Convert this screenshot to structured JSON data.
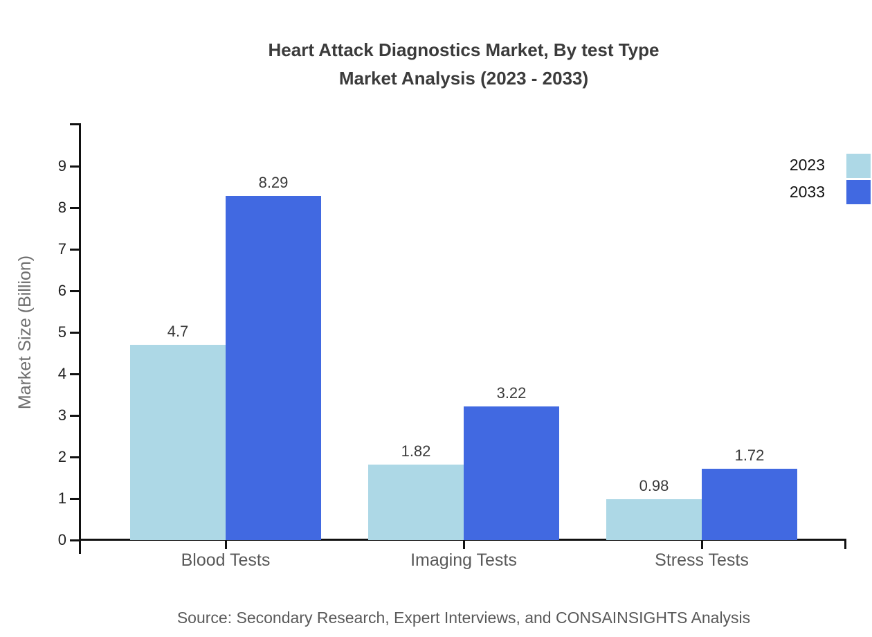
{
  "title": {
    "line1": "Heart Attack Diagnostics Market, By test Type",
    "line2": "Market Analysis (2023 - 2033)"
  },
  "source": "Source: Secondary Research, Expert Interviews, and CONSAINSIGHTS Analysis",
  "legend": {
    "items": [
      {
        "label": "2023",
        "color": "#add8e6"
      },
      {
        "label": "2033",
        "color": "#4169e1"
      }
    ]
  },
  "chart_data": {
    "type": "bar",
    "title": "Heart Attack Diagnostics Market, By test Type — Market Analysis (2023 - 2033)",
    "categories": [
      "Blood Tests",
      "Imaging Tests",
      "Stress Tests"
    ],
    "series": [
      {
        "name": "2023",
        "color": "#add8e6",
        "values": [
          4.7,
          1.82,
          0.98
        ]
      },
      {
        "name": "2033",
        "color": "#4169e1",
        "values": [
          8.29,
          3.22,
          1.72
        ]
      }
    ],
    "value_labels": {
      "2023": [
        "4.7",
        "1.82",
        "0.98"
      ],
      "2033": [
        "8.29",
        "3.22",
        "1.72"
      ]
    },
    "xlabel": "",
    "ylabel": "Market Size (Billion)",
    "ylim": [
      0,
      10
    ],
    "yticks": [
      0,
      1,
      2,
      3,
      4,
      5,
      6,
      7,
      8,
      9
    ],
    "grid": false,
    "legend_position": "top-right",
    "bar_orientation": "vertical"
  },
  "colors": {
    "axis": "#111111",
    "title_text": "#3b3b3b",
    "tick_text": "#1f1f1f",
    "muted_text": "#595959",
    "series_2023": "#add8e6",
    "series_2033": "#4169e1"
  }
}
